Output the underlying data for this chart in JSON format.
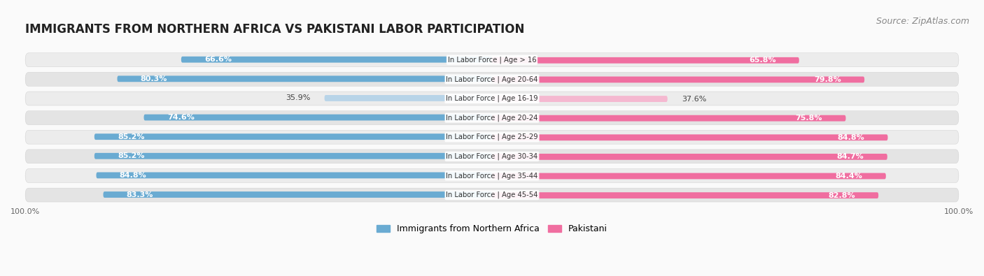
{
  "title": "IMMIGRANTS FROM NORTHERN AFRICA VS PAKISTANI LABOR PARTICIPATION",
  "source": "Source: ZipAtlas.com",
  "categories": [
    "In Labor Force | Age > 16",
    "In Labor Force | Age 20-64",
    "In Labor Force | Age 16-19",
    "In Labor Force | Age 20-24",
    "In Labor Force | Age 25-29",
    "In Labor Force | Age 30-34",
    "In Labor Force | Age 35-44",
    "In Labor Force | Age 45-54"
  ],
  "northern_africa": [
    66.6,
    80.3,
    35.9,
    74.6,
    85.2,
    85.2,
    84.8,
    83.3
  ],
  "pakistani": [
    65.8,
    79.8,
    37.6,
    75.8,
    84.8,
    84.7,
    84.4,
    82.8
  ],
  "blue_full": "#6AABD2",
  "blue_light": "#B8D4E8",
  "pink_full": "#F06EA0",
  "pink_light": "#F5B8D0",
  "row_bg_odd": "#EFEFEF",
  "row_bg_even": "#E8E8E8",
  "bg_color": "#FAFAFA",
  "title_fontsize": 12,
  "source_fontsize": 9,
  "label_fontsize": 8,
  "tick_fontsize": 8
}
